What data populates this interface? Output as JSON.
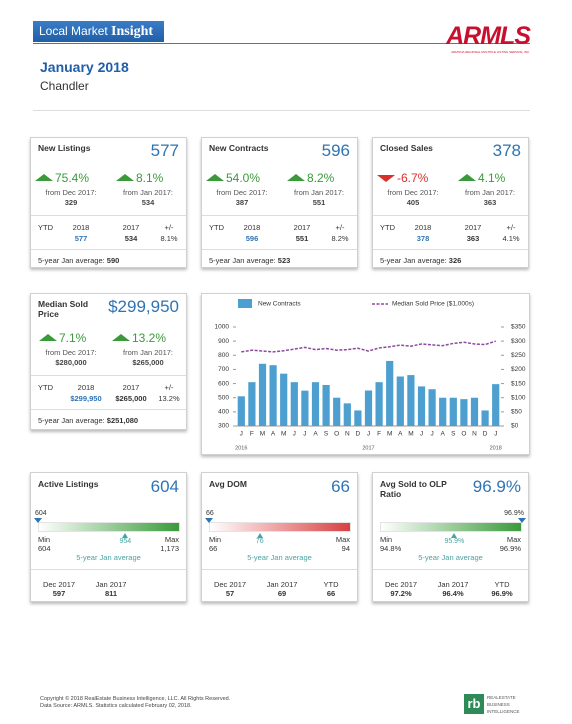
{
  "header": {
    "brand_plain": "Local Market",
    "brand_bold": "Insight",
    "logo": "ARMLS",
    "logo_sub": "ARIZONA REGIONAL MULTIPLE LISTING SERVICE, INC.",
    "month": "January 2018",
    "area": "Chandler"
  },
  "cards": [
    {
      "title": "New Listings",
      "value": "577",
      "changes": [
        {
          "pct": "75.4%",
          "dir": "up",
          "from": "from Dec 2017:",
          "base": "329"
        },
        {
          "pct": "8.1%",
          "dir": "up",
          "from": "from Jan 2017:",
          "base": "534"
        }
      ],
      "ytd": {
        "label": "YTD",
        "cols": [
          "2018",
          "2017",
          "+/-"
        ],
        "vals": [
          "577",
          "534",
          "8.1%"
        ]
      },
      "avg_label": "5-year Jan average:",
      "avg": "590"
    },
    {
      "title": "New Contracts",
      "value": "596",
      "changes": [
        {
          "pct": "54.0%",
          "dir": "up",
          "from": "from Dec 2017:",
          "base": "387"
        },
        {
          "pct": "8.2%",
          "dir": "up",
          "from": "from Jan 2017:",
          "base": "551"
        }
      ],
      "ytd": {
        "label": "YTD",
        "cols": [
          "2018",
          "2017",
          "+/-"
        ],
        "vals": [
          "596",
          "551",
          "8.2%"
        ]
      },
      "avg_label": "5-year Jan average:",
      "avg": "523"
    },
    {
      "title": "Closed Sales",
      "value": "378",
      "changes": [
        {
          "pct": "-6.7%",
          "dir": "down",
          "from": "from Dec 2017:",
          "base": "405"
        },
        {
          "pct": "4.1%",
          "dir": "up",
          "from": "from Jan 2017:",
          "base": "363"
        }
      ],
      "ytd": {
        "label": "YTD",
        "cols": [
          "2018",
          "2017",
          "+/-"
        ],
        "vals": [
          "378",
          "363",
          "4.1%"
        ]
      },
      "avg_label": "5-year Jan average:",
      "avg": "326"
    },
    {
      "title": "Median Sold Price",
      "value": "$299,950",
      "changes": [
        {
          "pct": "7.1%",
          "dir": "up",
          "from": "from Dec 2017:",
          "base": "$280,000"
        },
        {
          "pct": "13.2%",
          "dir": "up",
          "from": "from Jan 2017:",
          "base": "$265,000"
        }
      ],
      "ytd": {
        "label": "YTD",
        "cols": [
          "2018",
          "2017",
          "+/-"
        ],
        "vals": [
          "$299,950",
          "$265,000",
          "13.2%"
        ]
      },
      "avg_label": "5-year Jan average:",
      "avg": "$251,080"
    }
  ],
  "chart_data": {
    "type": "bar-line",
    "categories": [
      "J",
      "F",
      "M",
      "A",
      "M",
      "J",
      "J",
      "A",
      "S",
      "O",
      "N",
      "D",
      "J",
      "F",
      "M",
      "A",
      "M",
      "J",
      "J",
      "A",
      "S",
      "O",
      "N",
      "D",
      "J"
    ],
    "year_labels": [
      "2016",
      "2017",
      "2018"
    ],
    "series": [
      {
        "name": "New Contracts",
        "type": "bar",
        "color": "#4d9fcf",
        "values": [
          510,
          610,
          740,
          730,
          670,
          610,
          550,
          610,
          590,
          500,
          460,
          410,
          551,
          610,
          760,
          650,
          660,
          580,
          560,
          500,
          500,
          490,
          500,
          410,
          596
        ]
      },
      {
        "name": "Median Sold Price ($1,000s)",
        "type": "line",
        "axis": "y2",
        "color": "#8b4a9c",
        "values": [
          262,
          268,
          265,
          262,
          266,
          272,
          278,
          270,
          274,
          268,
          270,
          275,
          265,
          276,
          280,
          286,
          282,
          290,
          287,
          284,
          292,
          296,
          290,
          288,
          300
        ]
      }
    ],
    "ylim": [
      300,
      1000
    ],
    "yticks": [
      300,
      400,
      500,
      600,
      700,
      800,
      900,
      1000
    ],
    "y2lim": [
      0,
      350
    ],
    "y2ticks": [
      {
        "value": 0,
        "label": "$0"
      },
      {
        "value": 50,
        "label": "$50"
      },
      {
        "value": 100,
        "label": "$100"
      },
      {
        "value": 150,
        "label": "$150"
      },
      {
        "value": 200,
        "label": "$200"
      },
      {
        "value": 250,
        "label": "$250"
      },
      {
        "value": 300,
        "label": "$300"
      },
      {
        "value": 350,
        "label": "$350"
      }
    ],
    "legend": "top"
  },
  "gauges": [
    {
      "title": "Active Listings",
      "value": "604",
      "color": "#3a9a3a",
      "min_label": "Min",
      "min": "604",
      "max_label": "Max",
      "max": "1,173",
      "avg": "954",
      "avg_label": "5-year Jan average",
      "history": [
        {
          "label": "Dec 2017",
          "value": "597"
        },
        {
          "label": "Jan 2017",
          "value": "811"
        }
      ]
    },
    {
      "title": "Avg DOM",
      "value": "66",
      "color": "#d94040",
      "min_label": "Min",
      "min": "66",
      "max_label": "Max",
      "max": "94",
      "avg": "76",
      "avg_label": "5-year Jan average",
      "history": [
        {
          "label": "Dec 2017",
          "value": "57"
        },
        {
          "label": "Jan 2017",
          "value": "69"
        },
        {
          "label": "YTD",
          "value": "66"
        }
      ]
    },
    {
      "title": "Avg Sold to OLP Ratio",
      "value": "96.9%",
      "color": "#3a9a3a",
      "min_label": "Min",
      "min": "94.8%",
      "max_label": "Max",
      "max": "96.9%",
      "avg": "95.9%",
      "avg_label": "5-year Jan average",
      "history": [
        {
          "label": "Dec 2017",
          "value": "97.2%"
        },
        {
          "label": "Jan 2017",
          "value": "96.4%"
        },
        {
          "label": "YTD",
          "value": "96.9%"
        }
      ]
    }
  ],
  "footer": {
    "copyright": "Copyright © 2018 RealEstate Business Intelligence, LLC. All Rights Reserved.",
    "source": "Data Source: ARMLS. Statistics calculated February 02, 2018.",
    "logo": "rb",
    "logo_lines": [
      "REALESTATE",
      "BUSINESS",
      "INTELLIGENCE"
    ]
  }
}
